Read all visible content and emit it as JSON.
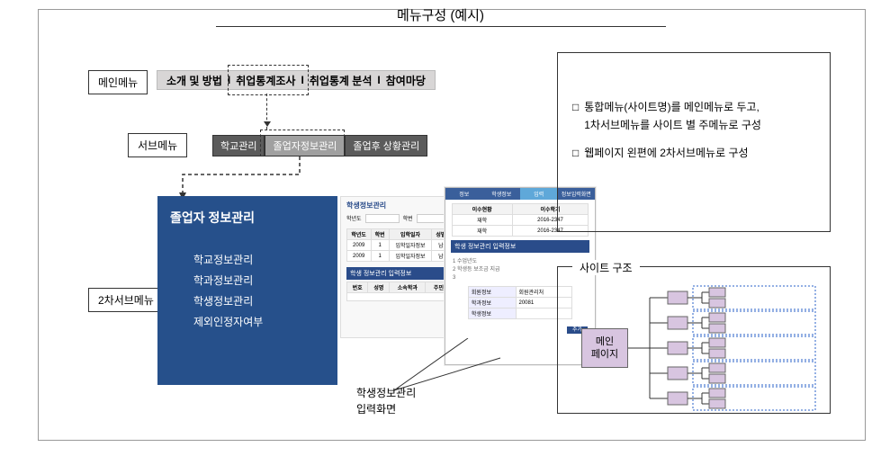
{
  "title": "메뉴구성 (예시)",
  "labels": {
    "main_menu": "메인메뉴",
    "sub_menu": "서브메뉴",
    "sub2_menu": "2차서브메뉴"
  },
  "main_menu": {
    "items": [
      "소개 및 방법",
      "취업통계조사",
      "취업통계 분석",
      "참여마당"
    ],
    "selected_index": 1
  },
  "sub_menu": {
    "items": [
      "학교관리",
      "졸업자정보관리",
      "졸업후 상황관리"
    ],
    "selected_index": 1
  },
  "blue_panel": {
    "title": "졸업자 정보관리",
    "items": [
      "학교정보관리",
      "학과정보관리",
      "학생정보관리",
      "제외인정자여부"
    ]
  },
  "mock_back": {
    "header": "학생정보관리",
    "search_l": "학년도",
    "search_r": "학번",
    "table_head": [
      "학년도",
      "학번",
      "입학일자",
      "성별",
      "출신교",
      "정원구분",
      "입학",
      "재학"
    ],
    "band": "학생 정보관리 입력정보",
    "table2_head": [
      "번호",
      "성명",
      "소속학과",
      "주민번호",
      "성별",
      "학년",
      "입학일자"
    ]
  },
  "mock_front": {
    "tabs": [
      "정보",
      "학생정보",
      "입력",
      "정보입력화면"
    ],
    "stat_head": [
      "이수현황",
      "이수학기"
    ],
    "stat_rows": [
      [
        "재학",
        "2016-2347"
      ],
      [
        "재학",
        "2016-2347"
      ]
    ],
    "band": "학생 정보관리 입력정보",
    "lines": [
      "1           수업년도",
      "2           학생등 보조금 지급",
      "3           "
    ],
    "mini": [
      [
        "회원정보",
        "회원관리처"
      ],
      [
        "학과정보",
        "20081"
      ],
      [
        "학생정보",
        ""
      ]
    ],
    "btn": "추가"
  },
  "callout": {
    "l1": "학생정보관리",
    "l2": "입력화면"
  },
  "desc": {
    "b1a": "통합메뉴(사이트명)를 메인메뉴로 두고,",
    "b1b": "1차서브메뉴를 사이트 별 주메뉴로 구성",
    "b2": "웹페이지 왼편에 2차서브메뉴로 구성"
  },
  "struct": {
    "title": "사이트 구조",
    "main_page": "메인\n페이지"
  },
  "colors": {
    "panel_blue": "#26508b",
    "node_purple": "#d8c5e0",
    "dashed_blue": "#2a62c8"
  }
}
